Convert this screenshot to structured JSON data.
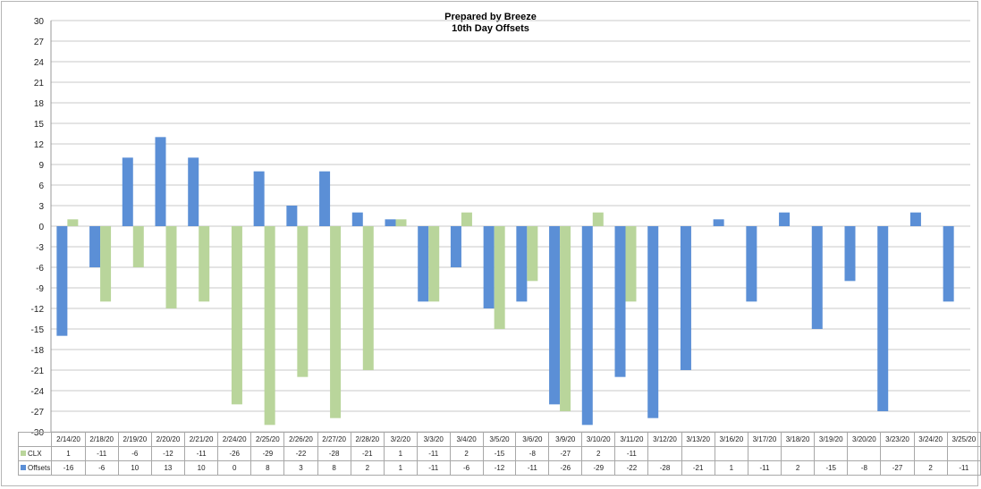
{
  "chart_data": {
    "type": "bar",
    "title": "Prepared by Breeze",
    "subtitle": "10th Day Offsets",
    "xlabel": "",
    "ylabel": "",
    "ylim": [
      -30,
      30
    ],
    "yticks": [
      30,
      27,
      24,
      21,
      18,
      15,
      12,
      9,
      6,
      3,
      0,
      -3,
      -6,
      -9,
      -12,
      -15,
      -18,
      -21,
      -24,
      -27,
      -30
    ],
    "grid": true,
    "legend": "data-table-left",
    "categories": [
      "2/14/20",
      "2/18/20",
      "2/19/20",
      "2/20/20",
      "2/21/20",
      "2/24/20",
      "2/25/20",
      "2/26/20",
      "2/27/20",
      "2/28/20",
      "3/2/20",
      "3/3/20",
      "3/4/20",
      "3/5/20",
      "3/6/20",
      "3/9/20",
      "3/10/20",
      "3/11/20",
      "3/12/20",
      "3/13/20",
      "3/16/20",
      "3/17/20",
      "3/18/20",
      "3/19/20",
      "3/20/20",
      "3/23/20",
      "3/24/20",
      "3/25/20"
    ],
    "series": [
      {
        "name": "CLX",
        "color": "#b9d59b",
        "values": [
          1,
          -11,
          -6,
          -12,
          -11,
          -26,
          -29,
          -22,
          -28,
          -21,
          1,
          -11,
          2,
          -15,
          -8,
          -27,
          2,
          -11,
          null,
          null,
          null,
          null,
          null,
          null,
          null,
          null,
          null,
          null
        ]
      },
      {
        "name": "Offsets",
        "color": "#5b8fd6",
        "values": [
          -16,
          -6,
          10,
          13,
          10,
          0,
          8,
          3,
          8,
          2,
          1,
          -11,
          -6,
          -12,
          -11,
          -26,
          -29,
          -22,
          -28,
          -21,
          1,
          -11,
          2,
          -15,
          -8,
          -27,
          2,
          -11
        ]
      }
    ]
  }
}
